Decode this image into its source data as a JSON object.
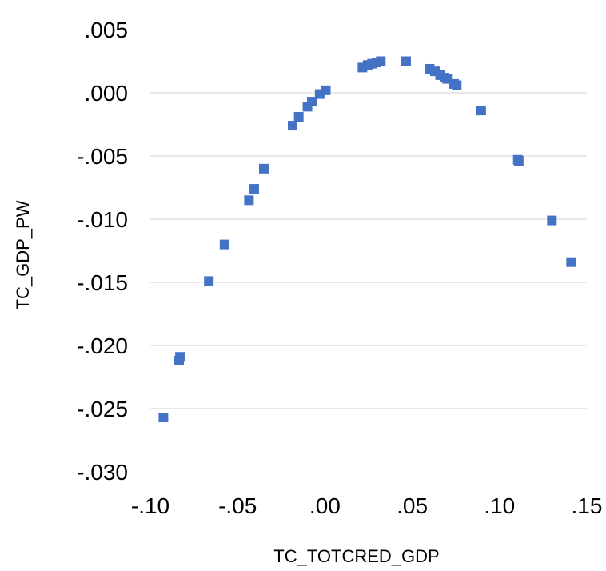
{
  "chart_data": {
    "type": "scatter",
    "title": "",
    "xlabel": "TC_TOTCRED_GDP",
    "ylabel": "TC_GDP_PW",
    "xlim": [
      -0.1,
      0.15
    ],
    "ylim": [
      -0.03,
      0.005
    ],
    "x_ticks": [
      -0.1,
      -0.05,
      0.0,
      0.05,
      0.1,
      0.15
    ],
    "x_tick_labels": [
      "-.10",
      "-.05",
      ".00",
      ".05",
      ".10",
      ".15"
    ],
    "y_ticks": [
      0.005,
      0.0,
      -0.005,
      -0.01,
      -0.015,
      -0.02,
      -0.025,
      -0.03
    ],
    "y_tick_labels": [
      ".005",
      ".000",
      "-.005",
      "-.010",
      "-.015",
      "-.020",
      "-.025",
      "-.030"
    ],
    "grid": "horizontal",
    "legend": "none",
    "marker_color": "#4472c4",
    "marker": "square",
    "series": [
      {
        "points": [
          {
            "x": -0.0925,
            "y": -0.0257
          },
          {
            "x": -0.0835,
            "y": -0.0212
          },
          {
            "x": -0.083,
            "y": -0.0209
          },
          {
            "x": -0.0665,
            "y": -0.0149
          },
          {
            "x": -0.0575,
            "y": -0.012
          },
          {
            "x": -0.0435,
            "y": -0.0085
          },
          {
            "x": -0.0405,
            "y": -0.0076
          },
          {
            "x": -0.035,
            "y": -0.006
          },
          {
            "x": -0.0185,
            "y": -0.0026
          },
          {
            "x": -0.015,
            "y": -0.0019
          },
          {
            "x": -0.01,
            "y": -0.0011
          },
          {
            "x": -0.0075,
            "y": -0.0007
          },
          {
            "x": -0.003,
            "y": -0.0001
          },
          {
            "x": 0.0005,
            "y": 0.0002
          },
          {
            "x": 0.0215,
            "y": 0.002
          },
          {
            "x": 0.0245,
            "y": 0.0022
          },
          {
            "x": 0.027,
            "y": 0.0023
          },
          {
            "x": 0.0295,
            "y": 0.0024
          },
          {
            "x": 0.032,
            "y": 0.0025
          },
          {
            "x": 0.0465,
            "y": 0.0025
          },
          {
            "x": 0.06,
            "y": 0.0019
          },
          {
            "x": 0.063,
            "y": 0.0017
          },
          {
            "x": 0.066,
            "y": 0.0014
          },
          {
            "x": 0.0685,
            "y": 0.0012
          },
          {
            "x": 0.07,
            "y": 0.0011
          },
          {
            "x": 0.074,
            "y": 0.0007
          },
          {
            "x": 0.0755,
            "y": 0.0006
          },
          {
            "x": 0.0895,
            "y": -0.0014
          },
          {
            "x": 0.1105,
            "y": -0.0053
          },
          {
            "x": 0.111,
            "y": -0.0054
          },
          {
            "x": 0.13,
            "y": -0.0101
          },
          {
            "x": 0.141,
            "y": -0.0134
          }
        ]
      }
    ]
  }
}
